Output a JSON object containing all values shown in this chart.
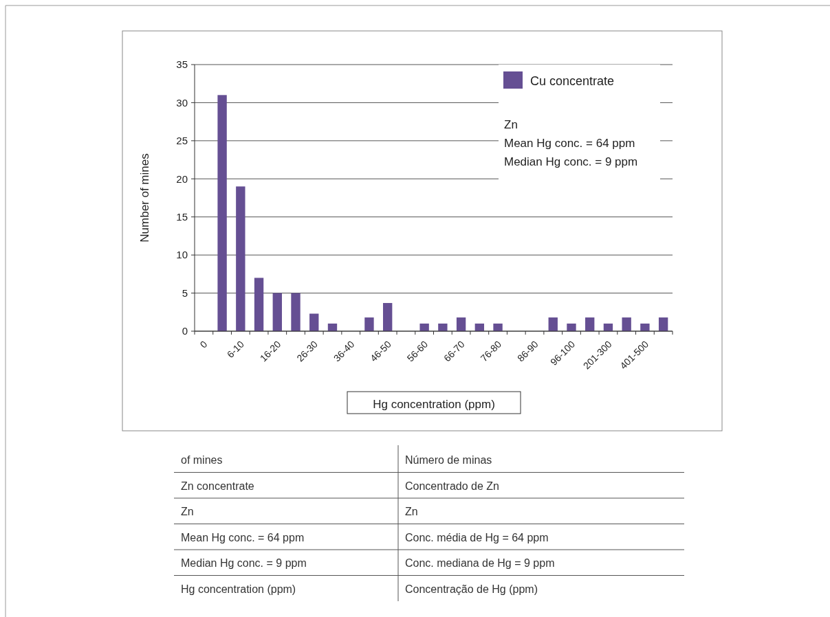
{
  "chart_data": {
    "type": "bar",
    "xlabel": "Hg concentration (ppm)",
    "ylabel": "Number of mines",
    "categories": [
      "0",
      null,
      "6-10",
      null,
      "16-20",
      null,
      "26-30",
      null,
      "36-40",
      null,
      "46-50",
      null,
      "56-60",
      null,
      "66-70",
      null,
      "76-80",
      null,
      "86-90",
      null,
      "96-100",
      null,
      "201-300",
      null,
      "401-500",
      null
    ],
    "series": [
      {
        "name": "Cu concentrate",
        "color": "#654f93",
        "values": [
          0,
          31,
          19,
          7,
          5,
          5,
          2.3,
          1,
          0,
          1.8,
          3.7,
          0,
          1,
          1,
          1.8,
          1,
          1,
          0,
          0,
          1.8,
          1,
          1.8,
          1,
          1.8,
          1,
          1.8
        ]
      }
    ],
    "ylim": [
      0,
      35
    ],
    "yticks": [
      0,
      5,
      10,
      15,
      20,
      25,
      30,
      35
    ],
    "grid": "y",
    "legend": "top right",
    "annotations": [
      "Zn",
      "Mean Hg conc. = 64 ppm",
      "Median Hg conc. = 9 ppm",
      "of mines",
      "Número de minas",
      "Zn concentrate",
      "Concentrado de Zn",
      "Zn",
      "Zn",
      "Mean Hg conc. = 64 ppm",
      "Conc. média de Hg = 64 ppm",
      "Median Hg conc. = 9 ppm",
      "Conc. mediana de Hg = 9 ppm",
      "Hg concentration (ppm)",
      "Concentração de Hg (ppm)"
    ]
  }
}
